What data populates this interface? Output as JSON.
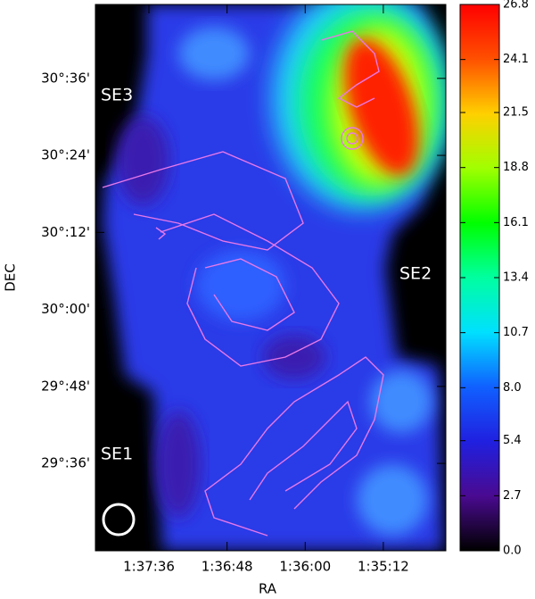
{
  "chart_data": {
    "type": "image",
    "x_label": "RA",
    "y_label": "DEC",
    "xlim": [
      24.537,
      23.64
    ],
    "ylim": [
      29.373,
      30.792
    ],
    "xticks": [
      {
        "value": 24.4,
        "label": "1:37:36"
      },
      {
        "value": 24.2,
        "label": "1:36:48"
      },
      {
        "value": 24.0,
        "label": "1:36:00"
      },
      {
        "value": 23.8,
        "label": "1:35:12"
      }
    ],
    "yticks": [
      {
        "value": 30.6,
        "label": "30°:36'"
      },
      {
        "value": 30.4,
        "label": "30°:24'"
      },
      {
        "value": 30.2,
        "label": "30°:12'"
      },
      {
        "value": 30.0,
        "label": "30°:00'"
      },
      {
        "value": 29.8,
        "label": "29°:48'"
      },
      {
        "value": 29.6,
        "label": "29°:36'"
      }
    ],
    "colorbar": {
      "lim": [
        0,
        26.8
      ],
      "ticks": [
        {
          "value": 0,
          "label": "0.0"
        },
        2.7,
        5.4,
        {
          "value": 8,
          "label": "8.0"
        },
        10.7,
        13.4,
        16.1,
        18.8,
        21.5,
        24.1,
        26.8
      ]
    },
    "annotations": [
      "SE3",
      "SE2",
      "SE1"
    ]
  }
}
